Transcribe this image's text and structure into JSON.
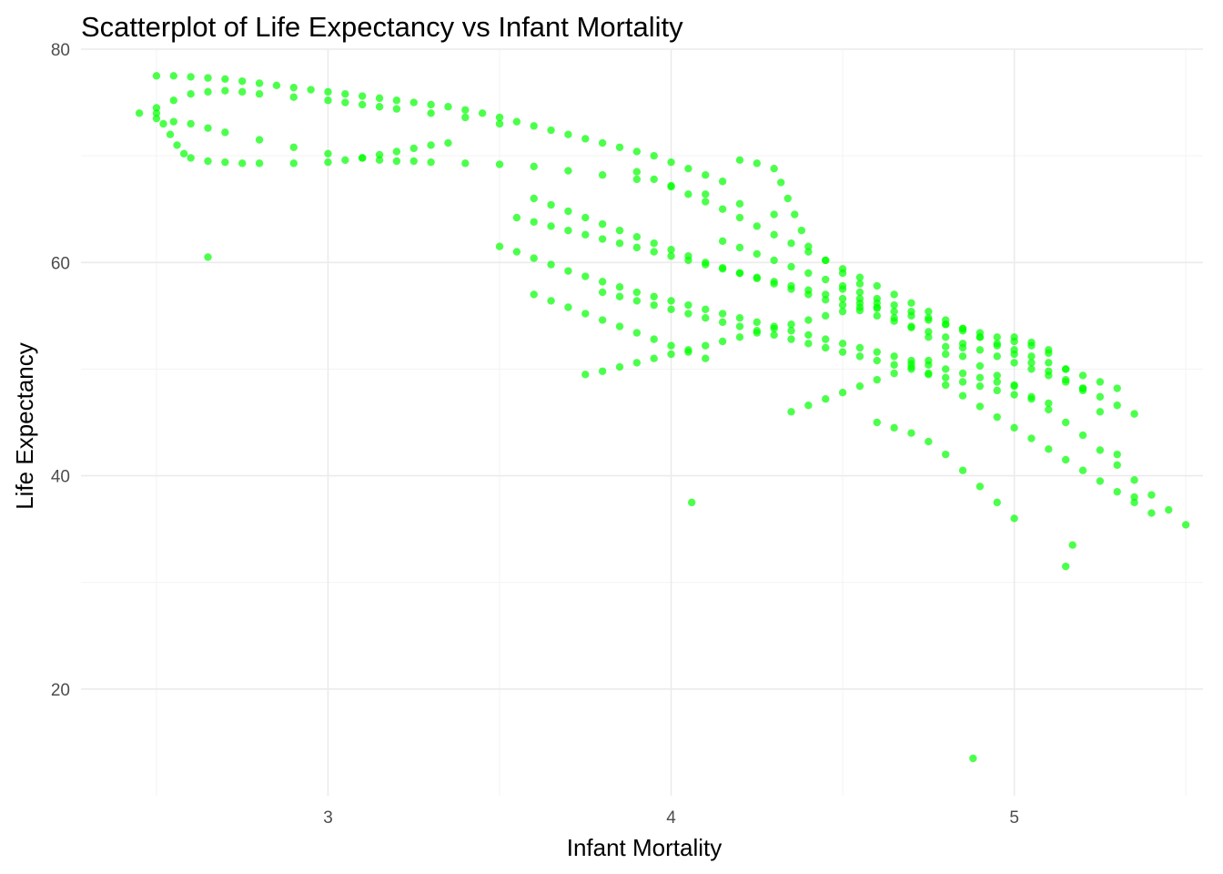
{
  "chart_data": {
    "type": "scatter",
    "title": "Scatterplot of Life Expectancy vs Infant Mortality",
    "xlabel": "Infant Mortality",
    "ylabel": "Life Expectancy",
    "xlim": [
      2.28,
      5.55
    ],
    "ylim": [
      10.0,
      80.0
    ],
    "x_ticks": [
      3,
      4,
      5
    ],
    "y_ticks": [
      20,
      40,
      60,
      80
    ],
    "x_minor_ticks": [
      2.5,
      3.5,
      4.5,
      5.5
    ],
    "y_minor_ticks": [
      30,
      50,
      70
    ],
    "grid": true,
    "point_color": "#00ff00",
    "series": [
      {
        "x": [
          2.5,
          2.55,
          2.6,
          2.65,
          2.7,
          2.75,
          2.8,
          2.85,
          2.9,
          2.95,
          3.0,
          3.05,
          3.1,
          3.15,
          3.2,
          3.25,
          3.3,
          3.35,
          3.4,
          3.45,
          3.5,
          3.55,
          3.6,
          3.65,
          3.7,
          3.75,
          3.8,
          3.85,
          3.9,
          3.95,
          4.0,
          4.05,
          4.1,
          4.15,
          2.45,
          2.5,
          2.55,
          2.6,
          2.65,
          2.7,
          2.75,
          2.8,
          2.9,
          3.0,
          3.05,
          3.1,
          3.15,
          3.2,
          3.3,
          3.4,
          3.5,
          2.5,
          2.55,
          2.6,
          2.65,
          2.7,
          2.8,
          2.9,
          3.0,
          3.1,
          3.15,
          3.2,
          3.25,
          3.3,
          3.4,
          3.5,
          3.6,
          3.7,
          3.8,
          3.9,
          4.0,
          4.1,
          4.2,
          4.3,
          2.5,
          2.52,
          2.54,
          2.56,
          2.58,
          2.6,
          2.65,
          2.7,
          2.75,
          2.8,
          2.9,
          3.0,
          3.05,
          3.1,
          3.15,
          3.2,
          3.25,
          3.3,
          3.35,
          3.55,
          3.6,
          3.65,
          3.7,
          3.75,
          3.8,
          3.85,
          3.9,
          3.95,
          4.0,
          4.05,
          4.1,
          4.15,
          4.2,
          4.25,
          4.3,
          4.35,
          4.4,
          4.45,
          4.5,
          4.55,
          4.6,
          4.65,
          4.7,
          4.75,
          4.8,
          4.85,
          4.9,
          4.95,
          5.0,
          5.05,
          5.1,
          3.5,
          3.55,
          3.6,
          3.65,
          3.7,
          3.75,
          3.8,
          3.85,
          3.9,
          3.95,
          4.0,
          4.05,
          4.1,
          4.15,
          4.2,
          4.25,
          4.3,
          4.35,
          4.4,
          4.45,
          4.5,
          4.55,
          4.6,
          4.65,
          4.7,
          4.75,
          4.8,
          4.85,
          4.9,
          4.95,
          5.0,
          3.6,
          3.65,
          3.7,
          3.75,
          3.8,
          3.85,
          3.9,
          3.95,
          4.0,
          4.05,
          4.1,
          4.15,
          4.2,
          4.25,
          4.3,
          4.35,
          4.4,
          4.45,
          4.5,
          4.55,
          4.6,
          4.65,
          4.7,
          4.75,
          4.8,
          4.85,
          4.9,
          4.95,
          5.0,
          5.05,
          5.1,
          5.15,
          5.2,
          3.8,
          3.85,
          3.9,
          3.95,
          4.0,
          4.05,
          4.1,
          4.15,
          4.2,
          4.25,
          4.3,
          4.35,
          4.4,
          4.45,
          4.5,
          4.55,
          4.6,
          4.65,
          4.7,
          4.75,
          4.8,
          4.85,
          4.9,
          4.95,
          5.0,
          5.05,
          5.1,
          3.9,
          3.95,
          4.0,
          4.05,
          4.1,
          4.15,
          4.2,
          4.25,
          4.3,
          4.35,
          4.4,
          4.45,
          4.5,
          4.55,
          4.6,
          4.65,
          4.7,
          4.75,
          4.8,
          4.85,
          4.9,
          4.95,
          5.0,
          5.05,
          5.1,
          5.15,
          5.2,
          5.25,
          5.3,
          5.35,
          4.15,
          4.2,
          4.25,
          4.3,
          4.35,
          4.4,
          4.45,
          4.5,
          4.55,
          4.6,
          4.65,
          4.7,
          4.75,
          4.8,
          4.85,
          4.9,
          4.95,
          5.0,
          5.05,
          5.1,
          5.15,
          5.2,
          5.25,
          5.3,
          4.5,
          4.55,
          4.6,
          4.65,
          4.7,
          4.75,
          4.8,
          4.85,
          4.9,
          4.95,
          5.0,
          5.05,
          5.1,
          5.15,
          5.2,
          5.25,
          5.3,
          5.35,
          5.4,
          5.45,
          5.5,
          4.7,
          4.75,
          4.8,
          4.85,
          4.9,
          4.95,
          5.0,
          5.05,
          5.1,
          5.15,
          5.2,
          5.25,
          5.3,
          5.35,
          5.4,
          5.0,
          5.05,
          5.1,
          5.15,
          5.2,
          5.25,
          5.3,
          5.35,
          4.2,
          4.25,
          4.3,
          4.32,
          4.34,
          4.36,
          4.38,
          4.4,
          4.45,
          4.5,
          4.55,
          3.75,
          3.8,
          3.85,
          3.9,
          3.95,
          4.0,
          4.05,
          4.1,
          4.15,
          4.2,
          4.25,
          4.3,
          4.35,
          4.4,
          4.45,
          4.5,
          4.55,
          4.6,
          3.6,
          3.65,
          3.7,
          3.75,
          3.8,
          3.85,
          3.9,
          3.95,
          4.0,
          4.05,
          4.1,
          4.35,
          4.4,
          4.45,
          4.5,
          4.55,
          4.6,
          4.65,
          4.7,
          4.75,
          4.8,
          4.85,
          4.6,
          4.65,
          4.7,
          4.75,
          4.8,
          4.85,
          4.9,
          4.95,
          5.0,
          2.65,
          4.06,
          5.15,
          5.17,
          4.88
        ],
        "y": [
          77.5,
          77.5,
          77.4,
          77.3,
          77.2,
          77.0,
          76.8,
          76.6,
          76.4,
          76.2,
          76.0,
          75.8,
          75.6,
          75.4,
          75.2,
          75.0,
          74.8,
          74.6,
          74.3,
          74.0,
          73.6,
          73.2,
          72.8,
          72.4,
          72.0,
          71.6,
          71.2,
          70.8,
          70.4,
          70.0,
          69.4,
          68.8,
          68.2,
          67.6,
          74.0,
          74.5,
          75.2,
          75.8,
          76.0,
          76.1,
          76.0,
          75.8,
          75.5,
          75.2,
          75.0,
          74.8,
          74.6,
          74.4,
          74.0,
          73.6,
          73.0,
          73.5,
          73.2,
          73.0,
          72.6,
          72.2,
          71.5,
          70.8,
          70.2,
          69.8,
          69.6,
          69.5,
          69.5,
          69.4,
          69.3,
          69.2,
          69.0,
          68.6,
          68.2,
          67.8,
          67.2,
          66.4,
          65.5,
          64.5,
          74.0,
          73.0,
          72.0,
          71.0,
          70.2,
          69.8,
          69.5,
          69.4,
          69.3,
          69.3,
          69.3,
          69.4,
          69.6,
          69.8,
          70.1,
          70.4,
          70.7,
          71.0,
          71.2,
          64.2,
          63.8,
          63.4,
          63.0,
          62.6,
          62.2,
          61.8,
          61.4,
          61.0,
          60.6,
          60.2,
          59.8,
          59.4,
          59.0,
          58.6,
          58.2,
          57.8,
          57.4,
          57.0,
          56.6,
          56.2,
          55.8,
          55.4,
          55.0,
          54.6,
          54.2,
          53.8,
          53.4,
          53.0,
          52.6,
          52.2,
          51.8,
          61.5,
          61.0,
          60.4,
          59.8,
          59.2,
          58.7,
          58.2,
          57.7,
          57.2,
          56.8,
          56.4,
          56.0,
          55.6,
          55.2,
          54.8,
          54.4,
          54.0,
          53.6,
          53.2,
          52.8,
          52.4,
          52.0,
          51.6,
          51.2,
          50.8,
          50.4,
          50.0,
          49.6,
          49.2,
          48.8,
          48.4,
          66.0,
          65.4,
          64.8,
          64.2,
          63.6,
          63.0,
          62.4,
          61.8,
          61.2,
          60.6,
          60.0,
          59.5,
          59.0,
          58.5,
          58.0,
          57.5,
          57.0,
          56.5,
          56.0,
          55.5,
          55.0,
          54.5,
          54.0,
          53.5,
          53.0,
          52.4,
          51.8,
          51.2,
          50.6,
          50.0,
          49.4,
          48.8,
          48.2,
          57.2,
          56.8,
          56.4,
          56.0,
          55.6,
          55.2,
          54.8,
          54.4,
          54.0,
          53.6,
          53.2,
          52.8,
          52.4,
          52.0,
          51.6,
          51.2,
          50.8,
          50.4,
          50.0,
          49.6,
          49.2,
          48.8,
          48.4,
          48.0,
          47.6,
          47.2,
          46.8,
          68.5,
          67.8,
          67.1,
          66.4,
          65.7,
          65.0,
          64.2,
          63.4,
          62.6,
          61.8,
          61.0,
          60.2,
          59.4,
          58.6,
          57.8,
          57.0,
          56.2,
          55.4,
          54.6,
          53.8,
          53.0,
          52.2,
          51.4,
          50.6,
          49.8,
          49.0,
          48.2,
          47.4,
          46.6,
          45.8,
          62.0,
          61.4,
          60.8,
          60.2,
          59.6,
          59.0,
          58.4,
          57.8,
          57.2,
          56.6,
          56.0,
          55.4,
          54.8,
          54.2,
          53.6,
          53.0,
          52.4,
          51.8,
          51.2,
          50.6,
          50.0,
          49.4,
          48.8,
          48.2,
          57.5,
          56.6,
          55.7,
          54.8,
          53.9,
          53.0,
          52.1,
          51.2,
          50.3,
          49.4,
          48.5,
          47.4,
          46.2,
          45.0,
          43.8,
          42.4,
          41.0,
          39.6,
          38.2,
          36.8,
          35.4,
          50.5,
          49.5,
          48.5,
          47.5,
          46.5,
          45.5,
          44.5,
          43.5,
          42.5,
          41.5,
          40.5,
          39.5,
          38.5,
          37.5,
          36.5,
          53.0,
          52.5,
          51.5,
          50.0,
          48.0,
          46.0,
          42.0,
          38.0,
          69.6,
          69.3,
          68.8,
          67.5,
          66.0,
          64.5,
          63.0,
          61.5,
          60.2,
          59.0,
          58.0,
          49.5,
          49.8,
          50.2,
          50.6,
          51.0,
          51.4,
          51.8,
          52.2,
          52.6,
          53.0,
          53.4,
          53.8,
          54.2,
          54.6,
          55.0,
          55.4,
          55.8,
          56.2,
          57.0,
          56.4,
          55.8,
          55.2,
          54.6,
          54.0,
          53.4,
          52.8,
          52.2,
          51.6,
          51.0,
          46.0,
          46.6,
          47.2,
          47.8,
          48.4,
          49.0,
          49.6,
          50.2,
          50.8,
          51.4,
          52.0,
          45.0,
          44.5,
          44.0,
          43.2,
          42.0,
          40.5,
          39.0,
          37.5,
          36.0,
          60.5,
          37.5,
          31.5,
          33.5,
          13.5
        ]
      }
    ]
  }
}
